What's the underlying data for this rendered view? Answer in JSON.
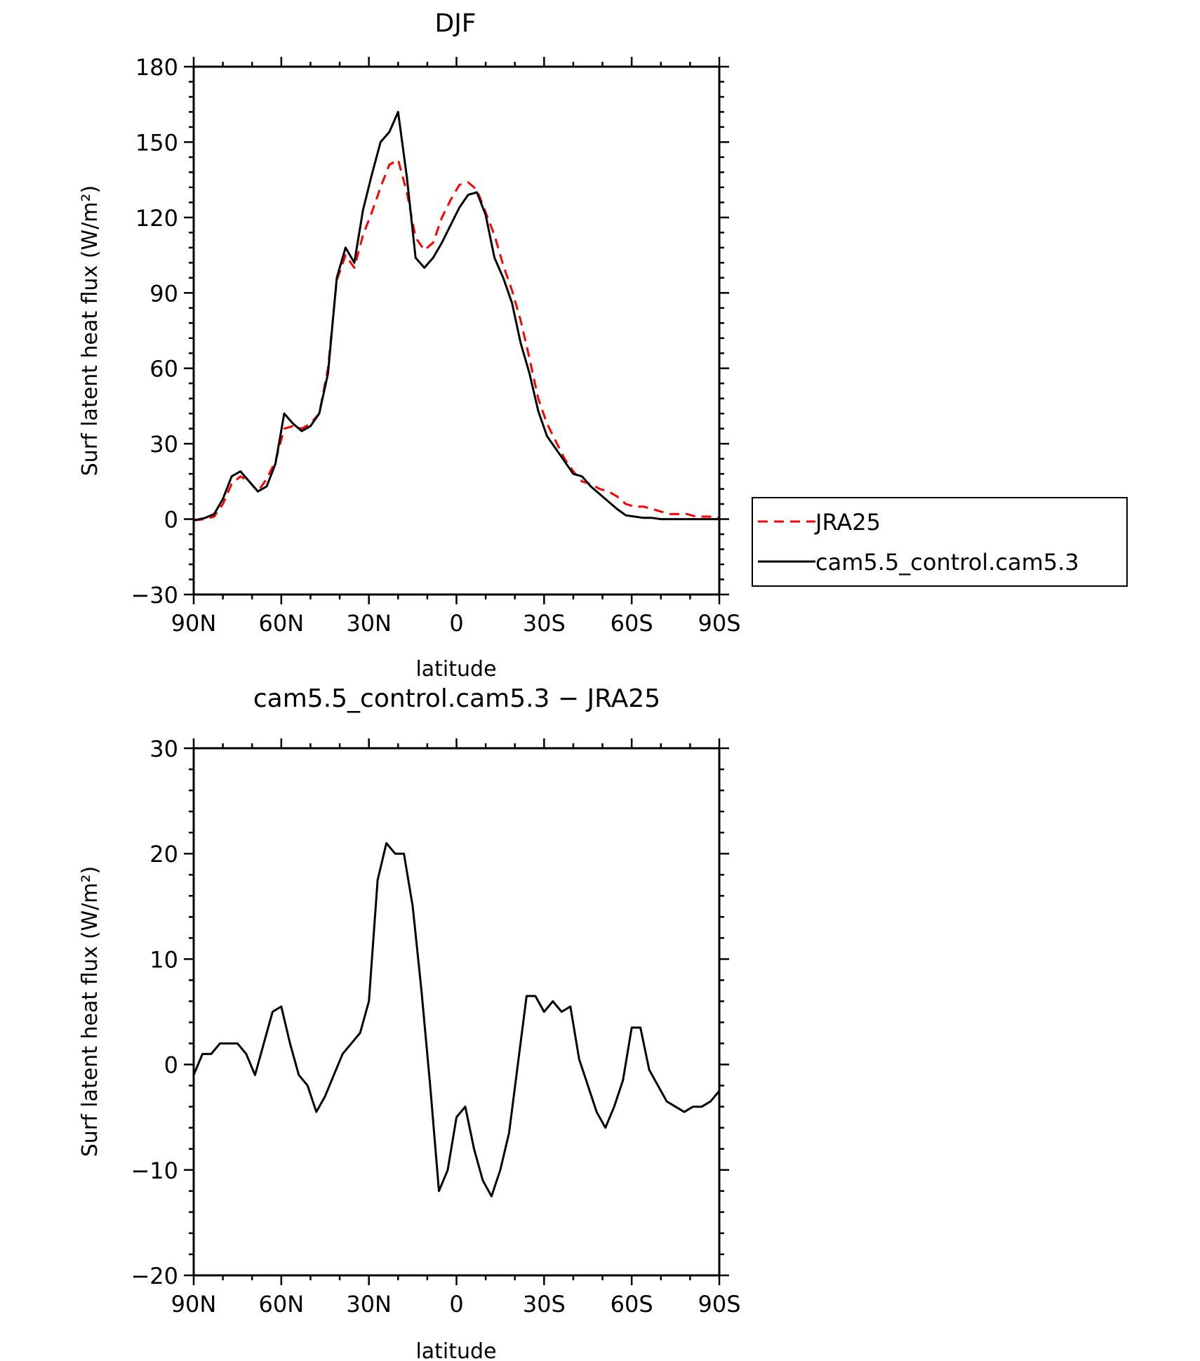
{
  "chart_data": [
    {
      "type": "line",
      "title": "DJF",
      "xlabel": "latitude",
      "ylabel": "Surf latent heat flux (W/m²)",
      "ylim": [
        -30,
        180
      ],
      "yticks": [
        -30,
        0,
        30,
        60,
        90,
        120,
        150,
        180
      ],
      "xlim": [
        90,
        -90
      ],
      "xticks": [
        90,
        60,
        30,
        0,
        -30,
        -60,
        -90
      ],
      "xticklabels": [
        "90N",
        "60N",
        "30N",
        "0",
        "30S",
        "60S",
        "90S"
      ],
      "legend": "outside-right",
      "series": [
        {
          "name": "JRA25",
          "color": "#ff0000",
          "style": "dashed",
          "x": [
            90,
            86,
            83,
            80,
            77,
            74,
            71,
            68,
            65,
            62,
            59,
            56,
            53,
            50,
            47,
            44,
            41,
            38,
            35,
            32,
            29,
            26,
            23,
            20,
            17,
            14,
            11,
            8,
            5,
            2,
            -1,
            -4,
            -7,
            -10,
            -13,
            -16,
            -19,
            -22,
            -25,
            -28,
            -31,
            -34,
            -37,
            -40,
            -43,
            -46,
            -49,
            -52,
            -55,
            -58,
            -61,
            -64,
            -67,
            -70,
            -73,
            -76,
            -79,
            -82,
            -85,
            -88,
            -90
          ],
          "y": [
            -0.5,
            0,
            1,
            6,
            14,
            17,
            15,
            11,
            16,
            23,
            36,
            37,
            36,
            38,
            42,
            60,
            95,
            105,
            100,
            113,
            122,
            132,
            141,
            143,
            130,
            112,
            107,
            110,
            120,
            127,
            133,
            134,
            131,
            122,
            113,
            101,
            91,
            79,
            64,
            48,
            38,
            31,
            24,
            19,
            15,
            14,
            12,
            11,
            9,
            6,
            5,
            5,
            4,
            3,
            2,
            2,
            2,
            1,
            1,
            1,
            0.5
          ]
        },
        {
          "name": "cam5.5_control.cam5.3",
          "color": "#000000",
          "style": "solid",
          "x": [
            90,
            86,
            83,
            80,
            77,
            74,
            71,
            68,
            65,
            62,
            59,
            56,
            53,
            50,
            47,
            44,
            41,
            38,
            35,
            32,
            29,
            26,
            23,
            20,
            17,
            14,
            11,
            8,
            5,
            2,
            -1,
            -4,
            -7,
            -10,
            -13,
            -16,
            -19,
            -22,
            -25,
            -28,
            -31,
            -34,
            -37,
            -40,
            -43,
            -46,
            -49,
            -52,
            -55,
            -58,
            -61,
            -64,
            -67,
            -70,
            -73,
            -76,
            -79,
            -82,
            -85,
            -88,
            -90
          ],
          "y": [
            -0.5,
            0.5,
            2,
            8,
            17,
            19,
            15,
            11,
            13,
            22,
            42,
            38,
            35,
            37,
            42,
            58,
            96,
            108,
            102,
            123,
            137,
            150,
            154,
            162,
            136,
            104,
            100,
            104,
            110,
            117,
            124,
            129,
            130,
            121,
            104,
            96,
            86,
            70,
            58,
            43,
            33,
            28,
            23,
            18,
            17,
            13,
            10,
            7,
            4,
            1.5,
            1,
            0.5,
            0.5,
            0,
            0,
            0,
            0,
            0,
            0,
            0,
            0
          ]
        }
      ]
    },
    {
      "type": "line",
      "title": "cam5.5_control.cam5.3 − JRA25",
      "xlabel": "latitude",
      "ylabel": "Surf latent heat flux (W/m²)",
      "ylim": [
        -20,
        30
      ],
      "yticks": [
        -20,
        -10,
        0,
        10,
        20,
        30
      ],
      "xlim": [
        90,
        -90
      ],
      "xticks": [
        90,
        60,
        30,
        0,
        -30,
        -60,
        -90
      ],
      "xticklabels": [
        "90N",
        "60N",
        "30N",
        "0",
        "30S",
        "60S",
        "90S"
      ],
      "series": [
        {
          "color": "#000000",
          "style": "solid",
          "x": [
            90,
            87,
            84,
            81,
            78,
            75,
            72,
            69,
            66,
            63,
            60,
            57,
            54,
            51,
            48,
            45,
            42,
            39,
            36,
            33,
            30,
            27,
            24,
            21,
            18,
            15,
            12,
            9,
            6,
            3,
            0,
            -3,
            -6,
            -9,
            -12,
            -15,
            -18,
            -21,
            -24,
            -27,
            -30,
            -33,
            -36,
            -39,
            -42,
            -45,
            -48,
            -51,
            -54,
            -57,
            -60,
            -63,
            -66,
            -69,
            -72,
            -75,
            -78,
            -81,
            -84,
            -87,
            -90
          ],
          "y": [
            -1,
            1,
            1,
            2,
            2,
            2,
            1,
            -1,
            2,
            5,
            5.5,
            2,
            -1,
            -2,
            -4.5,
            -3,
            -1,
            1,
            2,
            3,
            6,
            17.5,
            21,
            20,
            20,
            15,
            7,
            -2,
            -12,
            -10,
            -5,
            -4,
            -8,
            -11,
            -12.5,
            -10,
            -6.5,
            0,
            6.5,
            6.5,
            5,
            6,
            5,
            5.5,
            0.5,
            -2,
            -4.5,
            -6,
            -4,
            -1.5,
            3.5,
            3.5,
            -0.5,
            -2,
            -3.5,
            -4,
            -4.5,
            -4,
            -4,
            -3.5,
            -2.5
          ]
        }
      ]
    }
  ]
}
